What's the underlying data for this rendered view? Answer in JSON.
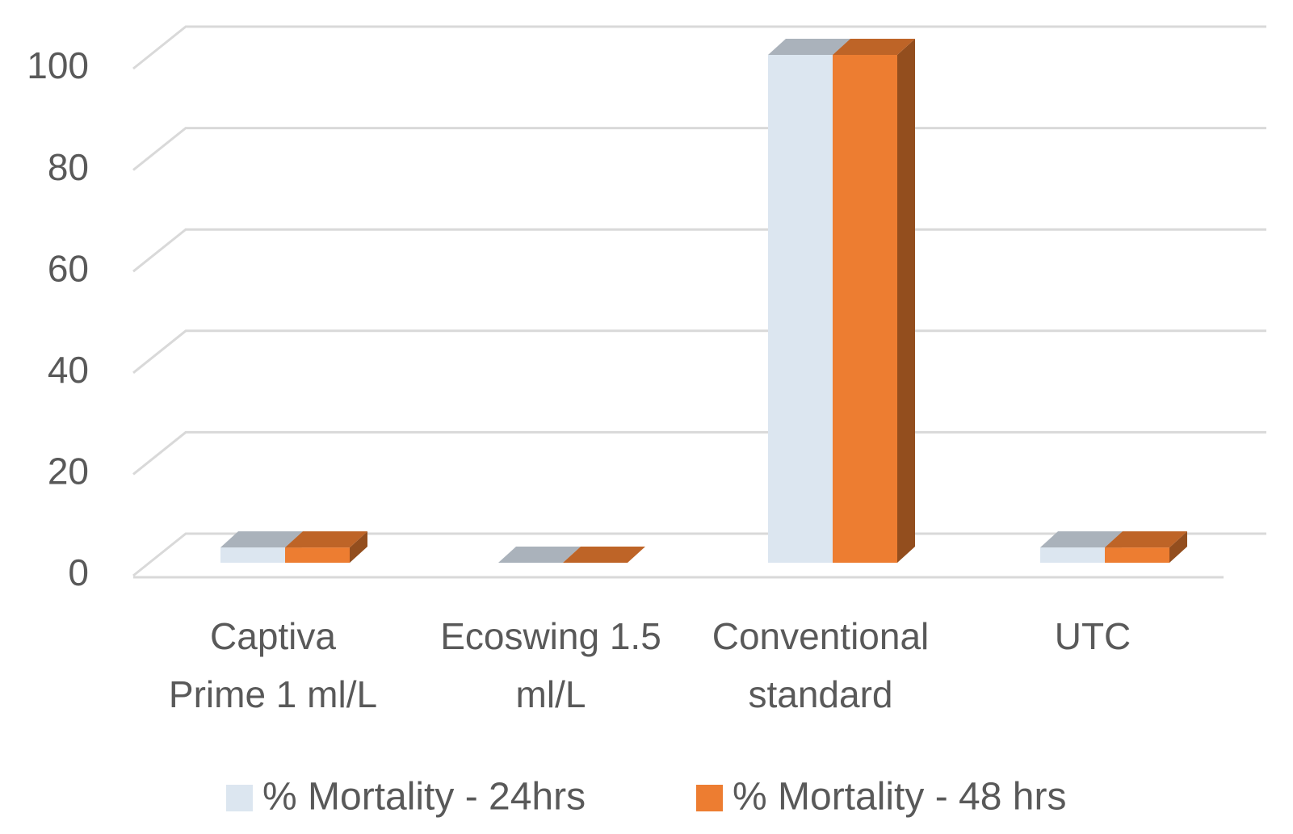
{
  "chart_data": {
    "type": "bar3d",
    "categories": [
      "Captiva Prime 1 ml/L",
      "Ecoswing 1.5 ml/L",
      "Conventional standard",
      "UTC"
    ],
    "series": [
      {
        "name": "% Mortality - 24hrs",
        "color": "#dce6f0",
        "values": [
          3,
          0,
          100,
          3
        ]
      },
      {
        "name": "% Mortality - 48 hrs",
        "color": "#ed7d31",
        "values": [
          3,
          0,
          100,
          3
        ]
      }
    ],
    "ylim": [
      0,
      100
    ],
    "yticks": [
      0,
      20,
      40,
      60,
      80,
      100
    ],
    "grid": true,
    "legend": "bottom"
  }
}
